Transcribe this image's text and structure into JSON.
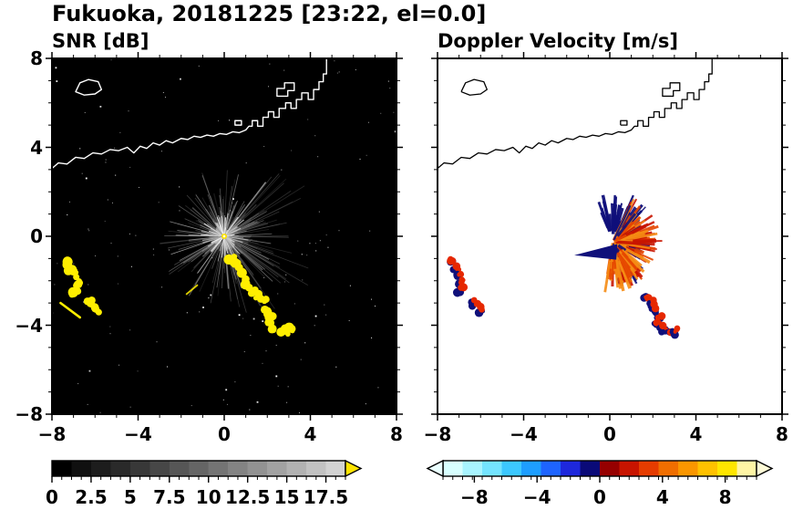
{
  "main_title": "Fukuoka, 20181225 [23:22, el=0.0]",
  "coastline_segments": [
    [
      [
        -6.9,
        6.5
      ],
      [
        -6.7,
        6.9
      ],
      [
        -6.3,
        7.05
      ],
      [
        -5.85,
        6.95
      ],
      [
        -5.7,
        6.6
      ],
      [
        -6.0,
        6.4
      ],
      [
        -6.5,
        6.35
      ],
      [
        -6.9,
        6.5
      ]
    ],
    [
      [
        -8,
        3.05
      ],
      [
        -7.7,
        3.3
      ],
      [
        -7.3,
        3.25
      ],
      [
        -6.9,
        3.55
      ],
      [
        -6.5,
        3.5
      ],
      [
        -6.1,
        3.75
      ],
      [
        -5.7,
        3.7
      ],
      [
        -5.3,
        3.9
      ],
      [
        -4.9,
        3.85
      ],
      [
        -4.5,
        4.0
      ],
      [
        -4.2,
        3.75
      ],
      [
        -3.9,
        4.05
      ],
      [
        -3.6,
        3.95
      ],
      [
        -3.3,
        4.2
      ],
      [
        -3.0,
        4.1
      ],
      [
        -2.7,
        4.3
      ],
      [
        -2.4,
        4.2
      ],
      [
        -2.0,
        4.4
      ],
      [
        -1.7,
        4.35
      ],
      [
        -1.4,
        4.5
      ],
      [
        -1.1,
        4.45
      ],
      [
        -0.8,
        4.55
      ],
      [
        -0.5,
        4.5
      ],
      [
        -0.2,
        4.62
      ],
      [
        0.1,
        4.58
      ],
      [
        0.4,
        4.7
      ],
      [
        0.7,
        4.66
      ],
      [
        1.0,
        4.78
      ],
      [
        1.15,
        4.95
      ],
      [
        1.3,
        4.95
      ],
      [
        1.3,
        5.2
      ],
      [
        1.55,
        5.2
      ],
      [
        1.55,
        4.95
      ],
      [
        1.8,
        4.95
      ],
      [
        1.8,
        5.35
      ],
      [
        2.05,
        5.35
      ],
      [
        2.05,
        5.6
      ],
      [
        2.3,
        5.6
      ],
      [
        2.3,
        5.35
      ],
      [
        2.55,
        5.35
      ],
      [
        2.55,
        5.75
      ],
      [
        2.85,
        5.75
      ],
      [
        2.85,
        6.0
      ],
      [
        3.1,
        6.0
      ],
      [
        3.1,
        5.75
      ],
      [
        3.35,
        5.75
      ],
      [
        3.35,
        6.15
      ],
      [
        3.6,
        6.15
      ],
      [
        3.6,
        6.45
      ],
      [
        3.9,
        6.45
      ],
      [
        3.9,
        6.15
      ],
      [
        4.15,
        6.15
      ],
      [
        4.15,
        6.6
      ],
      [
        4.4,
        6.6
      ],
      [
        4.4,
        6.95
      ],
      [
        4.6,
        6.95
      ],
      [
        4.6,
        7.3
      ],
      [
        4.75,
        7.3
      ],
      [
        4.75,
        8.0
      ]
    ],
    [
      [
        2.45,
        6.35
      ],
      [
        2.45,
        6.65
      ],
      [
        2.8,
        6.65
      ],
      [
        2.8,
        6.9
      ],
      [
        3.25,
        6.9
      ],
      [
        3.25,
        6.55
      ],
      [
        2.95,
        6.55
      ],
      [
        2.95,
        6.3
      ],
      [
        2.45,
        6.3
      ],
      [
        2.45,
        6.35
      ]
    ],
    [
      [
        0.5,
        5.0
      ],
      [
        0.5,
        5.2
      ],
      [
        0.8,
        5.2
      ],
      [
        0.8,
        5.0
      ],
      [
        0.5,
        5.0
      ]
    ]
  ],
  "chart_data": [
    {
      "type": "heatmap",
      "title": "SNR [dB]",
      "xlim": [
        -8,
        8
      ],
      "ylim": [
        -8,
        8
      ],
      "xtick_values": [
        -8,
        -4,
        0,
        4,
        8
      ],
      "xtick_labels": [
        "−8",
        "−4",
        "0",
        "4",
        "8"
      ],
      "ytick_values": [
        8,
        4,
        0,
        -4,
        -8
      ],
      "ytick_labels": [
        "8",
        "4",
        "0",
        "−4",
        "−8"
      ],
      "minor_tick_step": 1,
      "background": "#000000",
      "coastline_color": "#ffffff",
      "colorbar": {
        "min": 0,
        "max": 18.75,
        "tick_values": [
          0,
          2.5,
          5,
          7.5,
          10,
          12.5,
          15,
          17.5
        ],
        "tick_labels": [
          "0",
          "2.5",
          "5",
          "7.5",
          "10",
          "12.5",
          "15",
          "17.5"
        ],
        "segments": [
          "#000000",
          "#101010",
          "#1d1d1d",
          "#2a2a2a",
          "#383838",
          "#474747",
          "#565656",
          "#656565",
          "#747474",
          "#838383",
          "#929292",
          "#a2a2a2",
          "#b2b2b2",
          "#c2c2c2",
          "#d2d2d2"
        ],
        "arrow_right": "#ffe400"
      },
      "features": {
        "seed": 7,
        "radar_center": [
          0,
          0
        ],
        "fan_max_radius": 3.0,
        "fan_long_radius": 4.6,
        "echo_color": "#ffee00",
        "echo_chain": [
          [
            0.35,
            -1.0
          ],
          [
            0.55,
            -1.25
          ],
          [
            0.8,
            -1.55
          ],
          [
            1.0,
            -1.85
          ],
          [
            1.1,
            -2.15
          ],
          [
            1.3,
            -2.45
          ],
          [
            1.6,
            -2.7
          ],
          [
            1.85,
            -2.95
          ],
          [
            1.95,
            -3.25
          ],
          [
            2.15,
            -3.55
          ],
          [
            2.05,
            -3.85
          ],
          [
            2.35,
            -4.1
          ],
          [
            2.7,
            -4.3
          ],
          [
            3.05,
            -4.25
          ]
        ],
        "west_echoes": [
          [
            -7.35,
            -1.15
          ],
          [
            -7.15,
            -1.45
          ],
          [
            -6.95,
            -1.75
          ],
          [
            -6.85,
            -2.05
          ],
          [
            -6.9,
            -2.35
          ],
          [
            -7.0,
            -2.6
          ],
          [
            -6.25,
            -3.0
          ],
          [
            -5.95,
            -3.3
          ]
        ],
        "west_streak": [
          [
            -7.6,
            -3.0
          ],
          [
            -6.7,
            -3.65
          ]
        ],
        "small_streak": [
          [
            -1.75,
            -2.6
          ],
          [
            -1.25,
            -2.2
          ]
        ],
        "noise_dots": 150
      }
    },
    {
      "type": "heatmap",
      "title": "Doppler Velocity [m/s]",
      "xlim": [
        -8,
        8
      ],
      "ylim": [
        -8,
        8
      ],
      "xtick_values": [
        -8,
        -4,
        0,
        4,
        8
      ],
      "xtick_labels": [
        "−8",
        "−4",
        "0",
        "4",
        "8"
      ],
      "ytick_values": [
        8,
        4,
        0,
        -4,
        -8
      ],
      "ytick_labels": [
        "8",
        "4",
        "0",
        "−4",
        "−8"
      ],
      "minor_tick_step": 1,
      "background": "#ffffff",
      "coastline_color": "#000000",
      "colorbar": {
        "min": -10,
        "max": 10,
        "tick_values": [
          -8,
          -4,
          0,
          4,
          8
        ],
        "tick_labels": [
          "−8",
          "−4",
          "0",
          "4",
          "8"
        ],
        "segments": [
          "#d8ffff",
          "#a8f4ff",
          "#74e4ff",
          "#3cc8ff",
          "#1e9eff",
          "#1e64ff",
          "#1e28dc",
          "#0a0a78",
          "#960000",
          "#c81400",
          "#e63c00",
          "#f06e00",
          "#fa9600",
          "#ffc100",
          "#ffe600",
          "#fff5a5"
        ],
        "arrow_left": "#eaffff",
        "arrow_right": "#fffbd7"
      },
      "features": {
        "seed": 11,
        "radar_center": [
          0.15,
          -0.25
        ],
        "negative_color": "#10107a",
        "positive_colors": [
          "#c81400",
          "#e64600",
          "#f58c14"
        ],
        "left_wedge": [
          [
            0.35,
            -0.35
          ],
          [
            0.3,
            -1.05
          ],
          [
            -1.65,
            -0.85
          ]
        ],
        "blob_chain": [
          [
            1.7,
            -2.7
          ],
          [
            1.95,
            -3.0
          ],
          [
            2.1,
            -3.3
          ],
          [
            2.3,
            -3.6
          ],
          [
            2.2,
            -3.9
          ],
          [
            2.5,
            -4.15
          ],
          [
            2.85,
            -4.35
          ],
          [
            3.1,
            -4.25
          ]
        ],
        "west_blobs": [
          [
            -7.35,
            -1.15
          ],
          [
            -7.15,
            -1.45
          ],
          [
            -6.95,
            -1.75
          ],
          [
            -6.85,
            -2.05
          ],
          [
            -6.9,
            -2.35
          ],
          [
            -6.25,
            -3.0
          ],
          [
            -5.95,
            -3.3
          ]
        ],
        "blob_main": "#e62800",
        "blob_fringe": "#10107a"
      }
    }
  ]
}
